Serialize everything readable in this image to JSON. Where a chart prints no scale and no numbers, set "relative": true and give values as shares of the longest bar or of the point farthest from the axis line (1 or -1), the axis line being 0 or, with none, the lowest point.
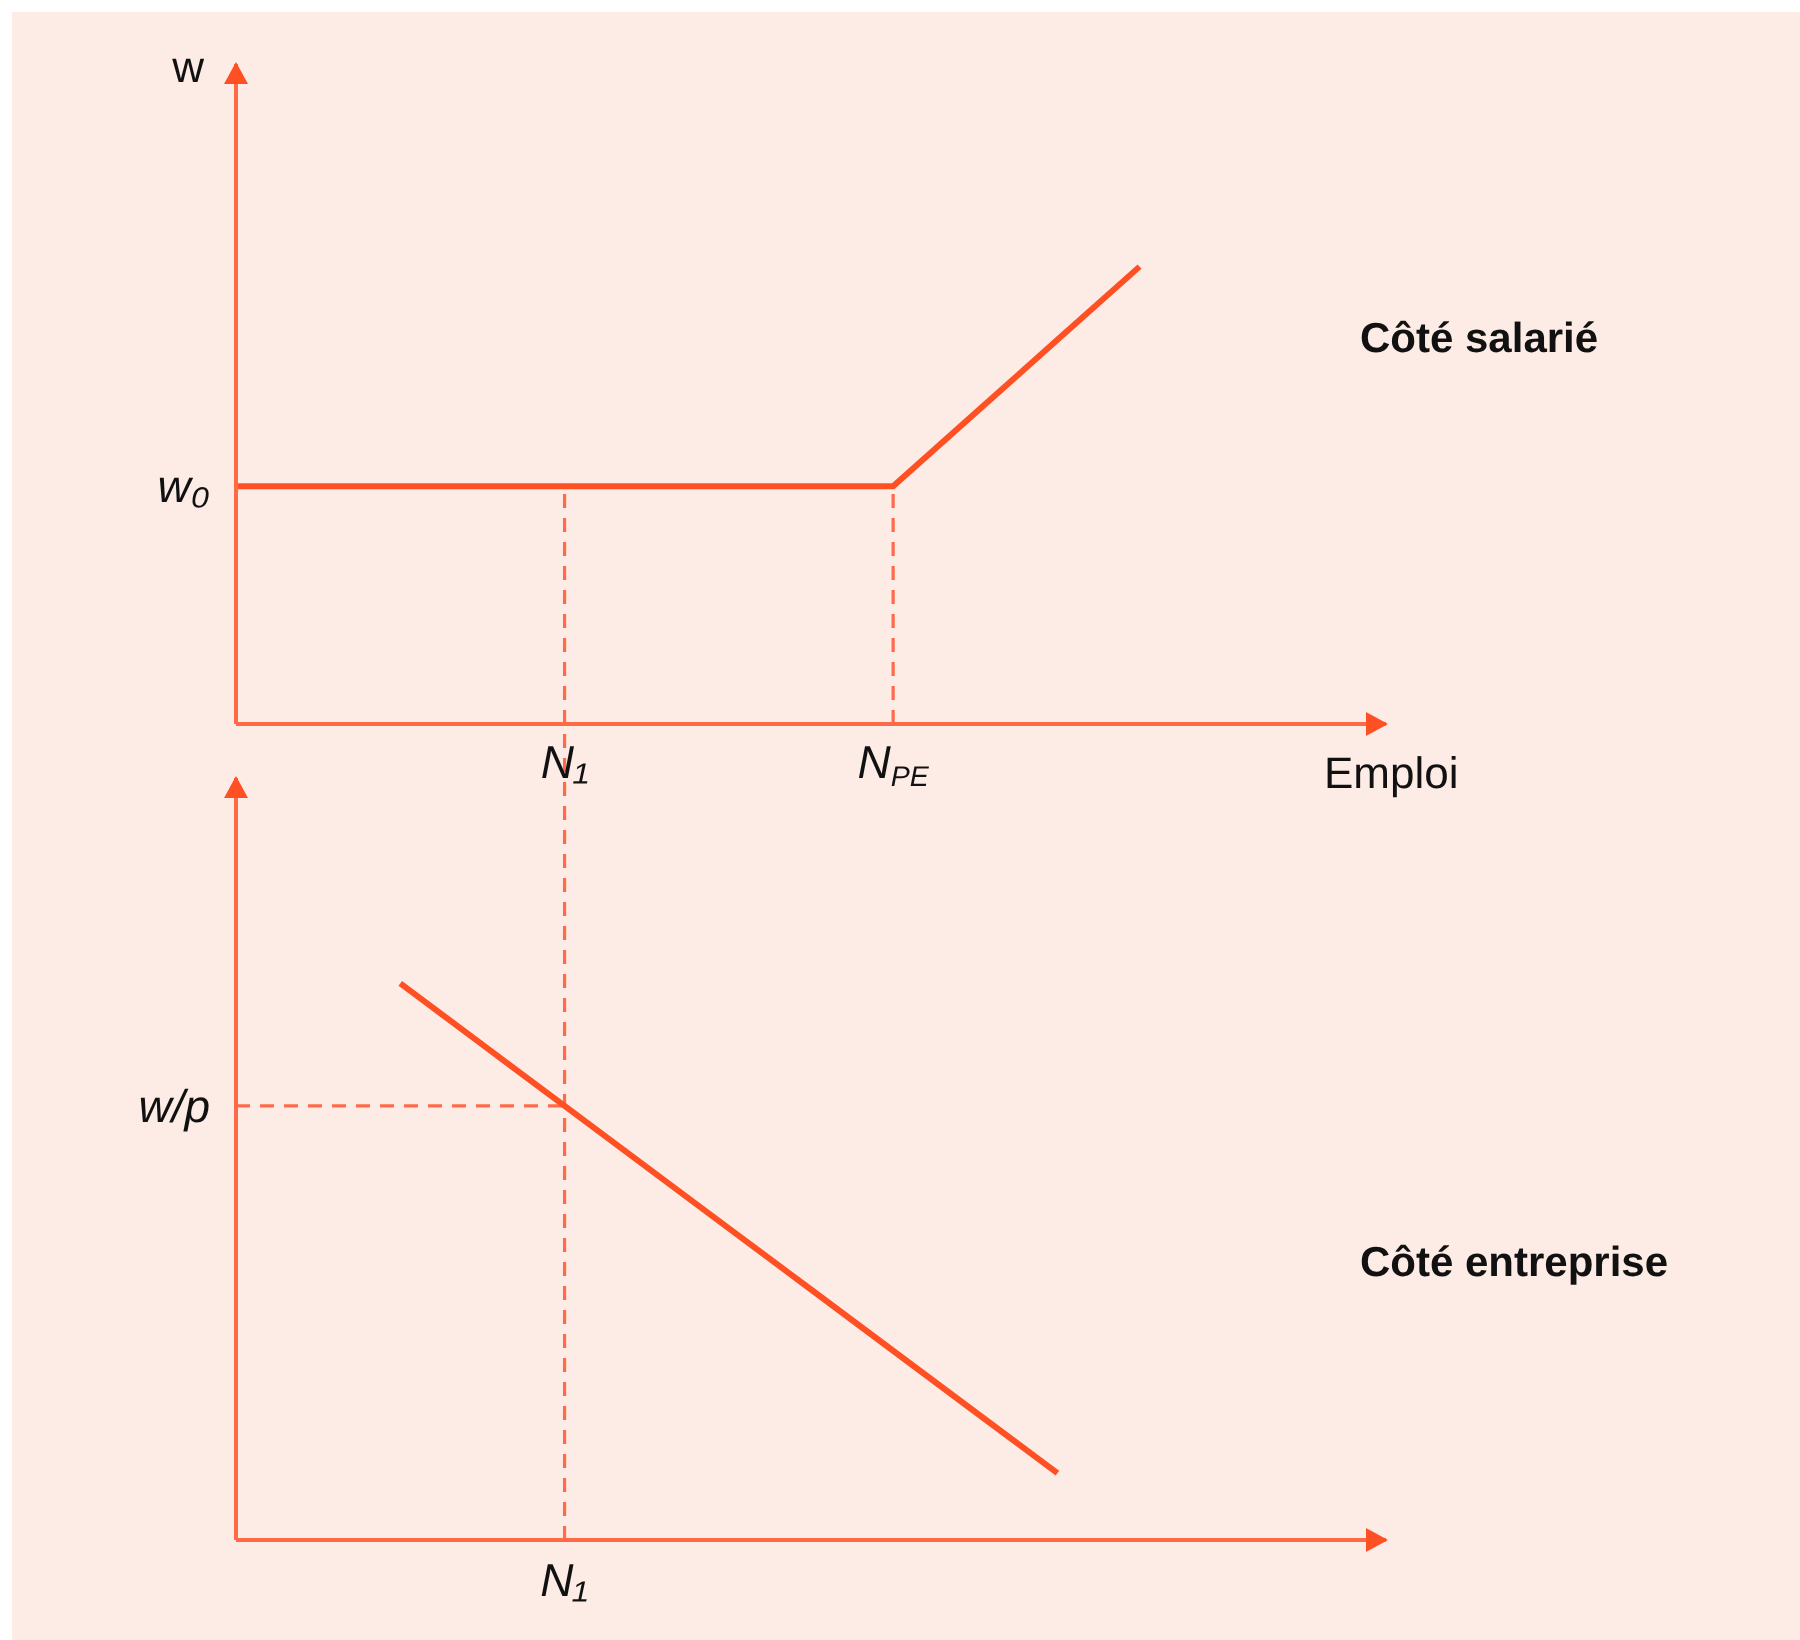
{
  "chart_data": [
    {
      "type": "line",
      "title": "Côté salarié",
      "xlabel": "Emploi",
      "ylabel": "w",
      "relative": true,
      "categories": [
        null,
        null,
        null,
        null,
        "N₁",
        null,
        null,
        null,
        "N$_{PE}$",
        null,
        null,
        null,
        null,
        null,
        null
      ],
      "values": [
        0.52,
        0.52,
        0.52,
        0.52,
        0.52,
        0.52,
        0.52,
        0.52,
        0.52,
        0.68,
        0.84,
        1,
        null,
        null,
        null
      ],
      "color": "#ff5024",
      "annotations": [
        "w₀"
      ],
      "ref_lines": [
        {
          "axis": "x",
          "value": "N₁",
          "color": "#ff6b4a",
          "line_style": "dashed"
        },
        {
          "axis": "x",
          "value": "N$_{PE}$",
          "color": "#ff6b4a",
          "line_style": "dashed"
        }
      ],
      "marker": "none",
      "line_style": "solid"
    },
    {
      "type": "line",
      "title": "Côté entreprise",
      "relative": true,
      "categories": [
        null,
        null,
        null,
        null,
        null,
        null,
        null,
        null,
        null,
        null,
        null,
        null,
        null,
        null,
        null
      ],
      "values": [
        null,
        null,
        1,
        0.89,
        0.78,
        0.67,
        0.56,
        0.45,
        0.34,
        0.23,
        0.12,
        null,
        null,
        null,
        null
      ],
      "color": "#ff5024",
      "annotations": [
        "N₁"
      ],
      "ref_lines": [
        {
          "axis": "y",
          "value": 0.78,
          "label": "w/p",
          "color": "#ff6b4a",
          "line_style": "dashed"
        }
      ],
      "marker": "none",
      "line_style": "solid"
    }
  ]
}
